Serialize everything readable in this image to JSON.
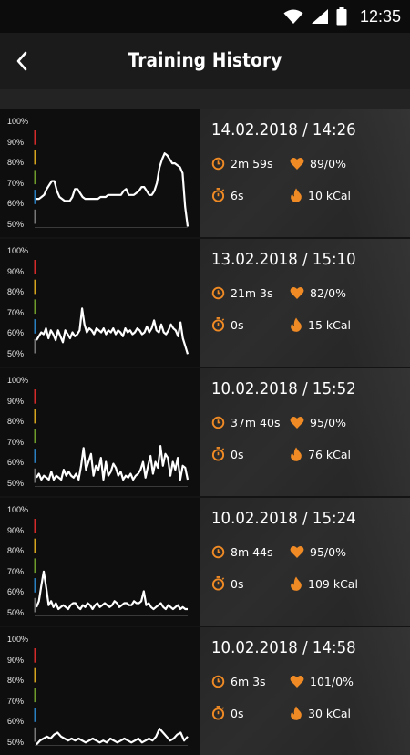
{
  "status_bar": {
    "time": "12:35"
  },
  "header": {
    "title": "Training History"
  },
  "y_labels": [
    "100%",
    "90%",
    "80%",
    "70%",
    "60%",
    "50%"
  ],
  "sessions": [
    {
      "date": "14.02.2018 / 14:26",
      "duration": "2m 59s",
      "heart_rate": "89/0%",
      "rest": "6s",
      "calories": "10 kCal",
      "chart_data": {
        "type": "line",
        "ylim": [
          50,
          100
        ],
        "values": [
          64,
          64,
          65,
          66,
          69,
          71,
          73,
          73,
          68,
          65,
          64,
          63,
          63,
          63,
          65,
          69,
          69,
          67,
          65,
          64,
          64,
          64,
          64,
          64,
          64,
          65,
          65,
          65,
          66,
          66,
          66,
          66,
          66,
          66,
          68,
          69,
          66,
          66,
          66,
          67,
          68,
          70,
          70,
          68,
          66,
          66,
          68,
          72,
          80,
          84,
          87,
          86,
          84,
          82,
          82,
          81,
          80,
          77,
          60,
          50
        ]
      }
    },
    {
      "date": "13.02.2018 / 15:10",
      "duration": "21m 3s",
      "heart_rate": "82/0%",
      "rest": "0s",
      "calories": "15 kCal",
      "chart_data": {
        "type": "line",
        "ylim": [
          50,
          100
        ],
        "values": [
          58,
          60,
          62,
          61,
          64,
          59,
          63,
          61,
          58,
          63,
          60,
          57,
          63,
          61,
          59,
          62,
          60,
          61,
          63,
          74,
          66,
          62,
          64,
          63,
          61,
          64,
          63,
          62,
          64,
          61,
          63,
          62,
          64,
          61,
          63,
          62,
          60,
          64,
          62,
          63,
          61,
          62,
          64,
          63,
          61,
          62,
          65,
          62,
          64,
          68,
          63,
          62,
          66,
          62,
          61,
          63,
          66,
          64,
          63,
          60,
          67,
          59,
          55,
          51
        ]
      }
    },
    {
      "date": "10.02.2018 / 15:52",
      "duration": "37m 40s",
      "heart_rate": "95/0%",
      "rest": "0s",
      "calories": "76 kCal",
      "chart_data": {
        "type": "line",
        "ylim": [
          50,
          100
        ],
        "values": [
          54,
          56,
          53,
          55,
          54,
          53,
          57,
          53,
          55,
          54,
          53,
          58,
          55,
          57,
          55,
          54,
          56,
          53,
          60,
          69,
          58,
          62,
          66,
          55,
          60,
          58,
          64,
          53,
          62,
          55,
          57,
          61,
          59,
          55,
          57,
          53,
          55,
          54,
          56,
          53,
          55,
          56,
          58,
          62,
          54,
          60,
          65,
          56,
          62,
          59,
          70,
          60,
          66,
          64,
          55,
          62,
          58,
          64,
          53,
          60,
          59,
          53
        ]
      }
    },
    {
      "date": "10.02.2018 / 15:24",
      "duration": "8m 44s",
      "heart_rate": "95/0%",
      "rest": "0s",
      "calories": "109 kCal",
      "chart_data": {
        "type": "line",
        "ylim": [
          50,
          100
        ],
        "values": [
          54,
          57,
          65,
          72,
          64,
          55,
          57,
          54,
          56,
          53,
          54,
          55,
          54,
          53,
          55,
          56,
          56,
          54,
          53,
          55,
          54,
          56,
          55,
          53,
          55,
          56,
          54,
          55,
          56,
          55,
          54,
          55,
          57,
          56,
          54,
          55,
          56,
          56,
          55,
          55,
          57,
          56,
          56,
          57,
          62,
          55,
          56,
          54,
          53,
          54,
          55,
          56,
          54,
          53,
          55,
          54,
          53,
          54,
          55,
          53,
          54,
          53,
          53
        ]
      }
    },
    {
      "date": "10.02.2018 / 14:58",
      "duration": "6m 3s",
      "heart_rate": "101/0%",
      "rest": "0s",
      "calories": "30 kCal",
      "chart_data": {
        "type": "line",
        "ylim": [
          50,
          100
        ],
        "values": [
          50,
          52,
          53,
          54,
          53,
          55,
          56,
          54,
          53,
          52,
          53,
          52,
          53,
          52,
          51,
          52,
          53,
          52,
          51,
          52,
          51,
          53,
          52,
          51,
          52,
          53,
          52,
          51,
          52,
          53,
          51,
          52,
          53,
          52,
          54,
          58,
          56,
          54,
          52,
          53,
          55,
          56,
          52,
          54
        ]
      }
    }
  ],
  "colors": {
    "accent": "#f08a24",
    "zone_red": "#d42a2a",
    "zone_yellow": "#d6a51e",
    "zone_green": "#6f9a2c",
    "zone_blue": "#2a7fc0",
    "zone_grey": "#777777"
  }
}
